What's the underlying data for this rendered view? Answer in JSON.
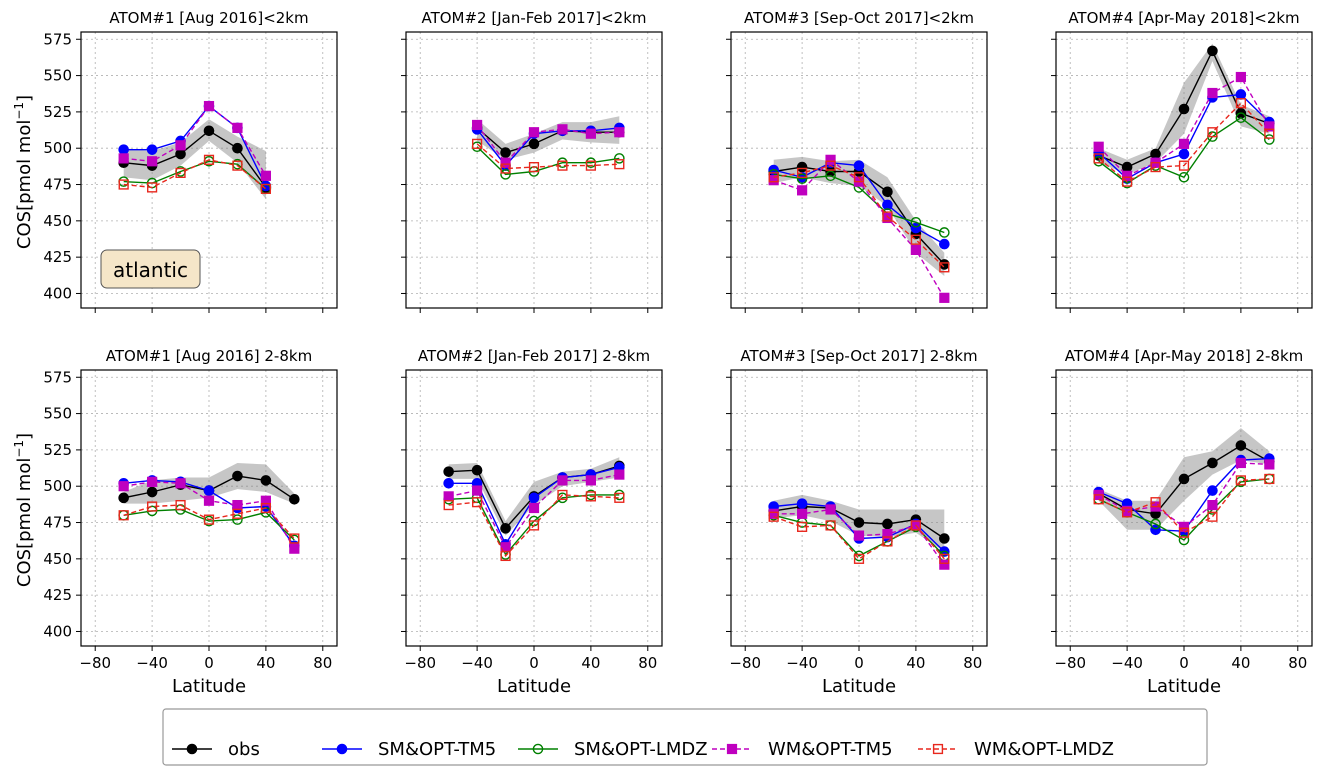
{
  "figure": {
    "ylabel": "COS[pmol mol",
    "ylabel_sup": "−1",
    "ylabel_close": "]",
    "xlabel": "Latitude",
    "region_label": "atlantic"
  },
  "axes": {
    "xlim": [
      -90,
      90
    ],
    "ylim": [
      390,
      580
    ],
    "xticks": [
      -80,
      -40,
      0,
      40,
      80
    ],
    "yticks": [
      400,
      425,
      450,
      475,
      500,
      525,
      550,
      575
    ],
    "xtick_labels": [
      "−80",
      "−40",
      "0",
      "40",
      "80"
    ],
    "ytick_labels": [
      "400",
      "425",
      "450",
      "475",
      "500",
      "525",
      "550",
      "575"
    ]
  },
  "legend": {
    "placement": "bottom-center",
    "entries": [
      "obs",
      "SM&OPT-TM5",
      "SM&OPT-LMDZ",
      "WM&OPT-TM5",
      "WM&OPT-LMDZ"
    ]
  },
  "series_styles": [
    {
      "key": "obs",
      "color": "#000000",
      "dash": "none",
      "marker": "circle",
      "fill": "#000000"
    },
    {
      "key": "sm_tm5",
      "color": "#0000ff",
      "dash": "none",
      "marker": "circle",
      "fill": "#0000ff"
    },
    {
      "key": "sm_lmdz",
      "color": "#008000",
      "dash": "none",
      "marker": "circle-open",
      "fill": "none"
    },
    {
      "key": "wm_tm5",
      "color": "#bf00bf",
      "dash": "dashed",
      "marker": "square",
      "fill": "#bf00bf"
    },
    {
      "key": "wm_lmdz",
      "color": "#e8271d",
      "dash": "dashed",
      "marker": "square-open",
      "fill": "none"
    }
  ],
  "chart_data": [
    {
      "type": "line",
      "title": "ATOM#1 [Aug 2016]<2km",
      "x": [
        -60,
        -40,
        -20,
        0,
        20,
        40
      ],
      "band": [
        [
          480,
          500
        ],
        [
          478,
          498
        ],
        [
          488,
          504
        ],
        [
          505,
          520
        ],
        [
          490,
          508
        ],
        [
          465,
          498
        ]
      ],
      "series": [
        {
          "name": "obs",
          "values": [
            490,
            488,
            496,
            512,
            500,
            473
          ]
        },
        {
          "name": "SM&OPT-TM5",
          "values": [
            499,
            499,
            505,
            529,
            514,
            474
          ]
        },
        {
          "name": "SM&OPT-LMDZ",
          "values": [
            477,
            476,
            484,
            491,
            489,
            472
          ]
        },
        {
          "name": "WM&OPT-TM5",
          "values": [
            493,
            491,
            502,
            529,
            514,
            481
          ]
        },
        {
          "name": "WM&OPT-LMDZ",
          "values": [
            475,
            473,
            483,
            492,
            488,
            472
          ]
        }
      ]
    },
    {
      "type": "line",
      "title": "ATOM#2 [Jan-Feb 2017]<2km",
      "x": [
        -40,
        -20,
        0,
        20,
        40,
        60
      ],
      "band": [
        [
          505,
          520
        ],
        [
          492,
          503
        ],
        [
          497,
          510
        ],
        [
          506,
          518
        ],
        [
          504,
          518
        ],
        [
          503,
          522
        ]
      ],
      "series": [
        {
          "name": "obs",
          "values": [
            514,
            497,
            503,
            512,
            511,
            511
          ]
        },
        {
          "name": "SM&OPT-TM5",
          "values": [
            513,
            488,
            510,
            512,
            512,
            514
          ]
        },
        {
          "name": "SM&OPT-LMDZ",
          "values": [
            501,
            482,
            484,
            490,
            490,
            493
          ]
        },
        {
          "name": "WM&OPT-TM5",
          "values": [
            516,
            490,
            511,
            513,
            510,
            511
          ]
        },
        {
          "name": "WM&OPT-LMDZ",
          "values": [
            503,
            486,
            487,
            488,
            488,
            489
          ]
        }
      ]
    },
    {
      "type": "line",
      "title": "ATOM#3 [Sep-Oct 2017]<2km",
      "x": [
        -60,
        -40,
        -20,
        0,
        20,
        40,
        60
      ],
      "band": [
        [
          476,
          492
        ],
        [
          480,
          494
        ],
        [
          476,
          491
        ],
        [
          474,
          492
        ],
        [
          460,
          480
        ],
        [
          428,
          450
        ],
        [
          412,
          428
        ]
      ],
      "series": [
        {
          "name": "obs",
          "values": [
            484,
            487,
            484,
            484,
            470,
            441,
            420
          ]
        },
        {
          "name": "SM&OPT-TM5",
          "values": [
            485,
            480,
            490,
            488,
            461,
            445,
            434
          ]
        },
        {
          "name": "SM&OPT-LMDZ",
          "values": [
            482,
            479,
            481,
            473,
            455,
            449,
            442
          ]
        },
        {
          "name": "WM&OPT-TM5",
          "values": [
            478,
            471,
            492,
            477,
            452,
            430,
            397
          ]
        },
        {
          "name": "WM&OPT-LMDZ",
          "values": [
            480,
            483,
            488,
            480,
            453,
            437,
            418
          ]
        }
      ]
    },
    {
      "type": "line",
      "title": "ATOM#4 [Apr-May 2018]<2km",
      "x": [
        -60,
        -40,
        -20,
        0,
        20,
        40,
        60
      ],
      "band": [
        [
          490,
          500
        ],
        [
          482,
          492
        ],
        [
          490,
          500
        ],
        [
          510,
          545
        ],
        [
          560,
          572
        ],
        [
          515,
          530
        ],
        [
          510,
          522
        ]
      ],
      "series": [
        {
          "name": "obs",
          "values": [
            495,
            487,
            496,
            527,
            567,
            524,
            517
          ]
        },
        {
          "name": "SM&OPT-TM5",
          "values": [
            497,
            479,
            490,
            496,
            535,
            537,
            518
          ]
        },
        {
          "name": "SM&OPT-LMDZ",
          "values": [
            491,
            476,
            488,
            480,
            508,
            521,
            506
          ]
        },
        {
          "name": "WM&OPT-TM5",
          "values": [
            501,
            481,
            490,
            503,
            538,
            549,
            515
          ]
        },
        {
          "name": "WM&OPT-LMDZ",
          "values": [
            493,
            477,
            487,
            488,
            511,
            531,
            510
          ]
        }
      ]
    },
    {
      "type": "line",
      "title": "ATOM#1 [Aug 2016] 2-8km",
      "x": [
        -60,
        -40,
        -20,
        0,
        20,
        40,
        60
      ],
      "band": [
        [
          488,
          496
        ],
        [
          488,
          504
        ],
        [
          490,
          506
        ],
        [
          492,
          506
        ],
        [
          498,
          516
        ],
        [
          496,
          515
        ],
        [
          488,
          495
        ]
      ],
      "series": [
        {
          "name": "obs",
          "values": [
            492,
            496,
            501,
            497,
            507,
            504,
            491
          ]
        },
        {
          "name": "SM&OPT-TM5",
          "values": [
            502,
            504,
            503,
            497,
            485,
            486,
            459
          ]
        },
        {
          "name": "SM&OPT-LMDZ",
          "values": [
            480,
            483,
            484,
            476,
            477,
            482,
            463
          ]
        },
        {
          "name": "WM&OPT-TM5",
          "values": [
            500,
            503,
            502,
            490,
            487,
            490,
            457
          ]
        },
        {
          "name": "WM&OPT-LMDZ",
          "values": [
            480,
            486,
            487,
            477,
            481,
            485,
            464
          ]
        }
      ]
    },
    {
      "type": "line",
      "title": "ATOM#2 [Jan-Feb 2017] 2-8km",
      "x": [
        -60,
        -40,
        -20,
        0,
        20,
        40,
        60
      ],
      "band": [
        [
          505,
          515
        ],
        [
          505,
          516
        ],
        [
          466,
          476
        ],
        [
          487,
          503
        ],
        [
          500,
          510
        ],
        [
          503,
          512
        ],
        [
          506,
          520
        ]
      ],
      "series": [
        {
          "name": "obs",
          "values": [
            510,
            511,
            471,
            493,
            506,
            508,
            514
          ]
        },
        {
          "name": "SM&OPT-TM5",
          "values": [
            502,
            502,
            460,
            492,
            506,
            508,
            513
          ]
        },
        {
          "name": "SM&OPT-LMDZ",
          "values": [
            491,
            492,
            453,
            476,
            492,
            494,
            494
          ]
        },
        {
          "name": "WM&OPT-TM5",
          "values": [
            493,
            497,
            458,
            485,
            504,
            504,
            508
          ]
        },
        {
          "name": "WM&OPT-LMDZ",
          "values": [
            487,
            489,
            452,
            473,
            494,
            493,
            492
          ]
        }
      ]
    },
    {
      "type": "line",
      "title": "ATOM#3 [Sep-Oct 2017] 2-8km",
      "x": [
        -60,
        -40,
        -20,
        0,
        20,
        40,
        60
      ],
      "band": [
        [
          478,
          490
        ],
        [
          480,
          494
        ],
        [
          476,
          490
        ],
        [
          466,
          484
        ],
        [
          465,
          484
        ],
        [
          468,
          484
        ],
        [
          455,
          484
        ]
      ],
      "series": [
        {
          "name": "obs",
          "values": [
            483,
            486,
            485,
            475,
            474,
            477,
            464
          ]
        },
        {
          "name": "SM&OPT-TM5",
          "values": [
            486,
            488,
            486,
            464,
            465,
            474,
            455
          ]
        },
        {
          "name": "SM&OPT-LMDZ",
          "values": [
            480,
            475,
            473,
            452,
            462,
            472,
            452
          ]
        },
        {
          "name": "WM&OPT-TM5",
          "values": [
            481,
            481,
            484,
            466,
            467,
            473,
            446
          ]
        },
        {
          "name": "WM&OPT-LMDZ",
          "values": [
            479,
            472,
            473,
            450,
            462,
            473,
            450
          ]
        }
      ]
    },
    {
      "type": "line",
      "title": "ATOM#4 [Apr-May 2018] 2-8km",
      "x": [
        -60,
        -40,
        -20,
        0,
        20,
        40,
        60
      ],
      "band": [
        [
          490,
          498
        ],
        [
          470,
          490
        ],
        [
          470,
          490
        ],
        [
          490,
          520
        ],
        [
          508,
          524
        ],
        [
          518,
          540
        ],
        [
          515,
          524
        ]
      ],
      "series": [
        {
          "name": "obs",
          "values": [
            495,
            484,
            481,
            505,
            516,
            528,
            517
          ]
        },
        {
          "name": "SM&OPT-TM5",
          "values": [
            496,
            488,
            470,
            469,
            497,
            518,
            519
          ]
        },
        {
          "name": "SM&OPT-LMDZ",
          "values": [
            491,
            482,
            474,
            463,
            484,
            503,
            505
          ]
        },
        {
          "name": "WM&OPT-TM5",
          "values": [
            494,
            483,
            486,
            472,
            487,
            516,
            515
          ]
        },
        {
          "name": "WM&OPT-LMDZ",
          "values": [
            491,
            482,
            489,
            468,
            479,
            504,
            505
          ]
        }
      ]
    }
  ]
}
